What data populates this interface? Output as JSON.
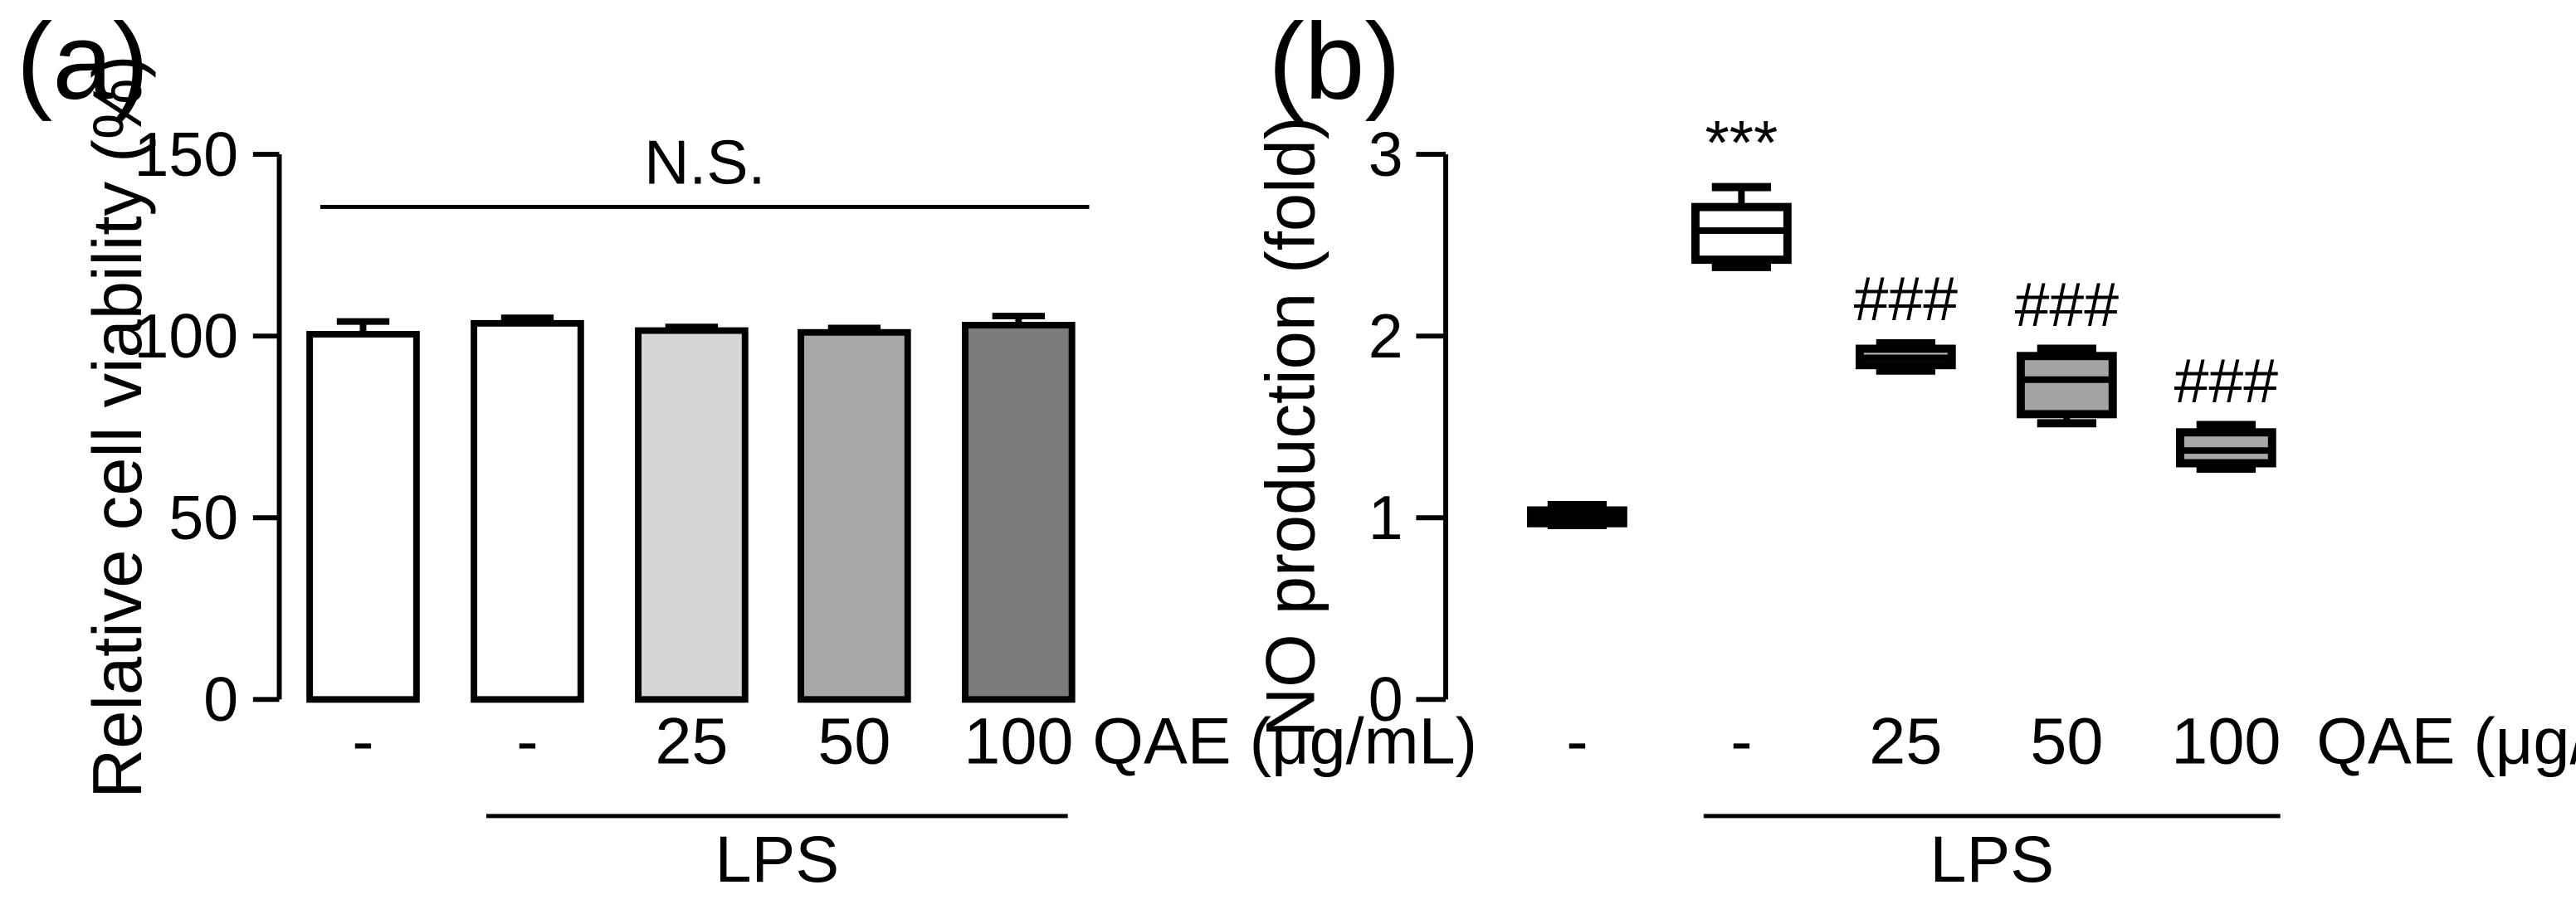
{
  "chart_data": [
    {
      "type": "bar",
      "panel_label": "(a)",
      "title": "",
      "ylabel": "Relative cell viability (%)",
      "ylim": [
        0,
        150
      ],
      "yticks": [
        0,
        50,
        100,
        150
      ],
      "categories": [
        "-",
        "-",
        "25",
        "50",
        "100"
      ],
      "treatment_label": "QAE (μg/mL)",
      "group_label": "LPS",
      "values": [
        100.5,
        103.5,
        101.5,
        101.0,
        103.0
      ],
      "errors": [
        3.5,
        1.5,
        1.0,
        1.2,
        2.5
      ],
      "bar_colors": [
        "#ffffff",
        "#ffffff",
        "#d6d6d6",
        "#a7a7a9",
        "#7b7b7b"
      ],
      "annotation": "N.S."
    },
    {
      "type": "box",
      "panel_label": "(b)",
      "title": "",
      "ylabel": "NO production  (fold)",
      "ylim": [
        0,
        3
      ],
      "yticks": [
        0,
        1,
        2,
        3
      ],
      "categories": [
        "-",
        "-",
        "25",
        "50",
        "100"
      ],
      "treatment_label": "QAE (μg/mL)",
      "group_label": "LPS",
      "boxes": [
        {
          "min": 0.96,
          "q1": 0.97,
          "median": 1.01,
          "q3": 1.04,
          "max": 1.07
        },
        {
          "min": 2.38,
          "q1": 2.42,
          "median": 2.58,
          "q3": 2.71,
          "max": 2.82
        },
        {
          "min": 1.81,
          "q1": 1.84,
          "median": 1.88,
          "q3": 1.93,
          "max": 1.96
        },
        {
          "min": 1.52,
          "q1": 1.57,
          "median": 1.76,
          "q3": 1.89,
          "max": 1.93
        },
        {
          "min": 1.27,
          "q1": 1.3,
          "median": 1.37,
          "q3": 1.47,
          "max": 1.51
        }
      ],
      "box_colors": [
        "#ffffff",
        "#ffffff",
        "#bdbdbd",
        "#a3a3a3",
        "#a8a8a8"
      ],
      "significance": [
        "",
        "***",
        "###",
        "###",
        "###"
      ]
    }
  ]
}
